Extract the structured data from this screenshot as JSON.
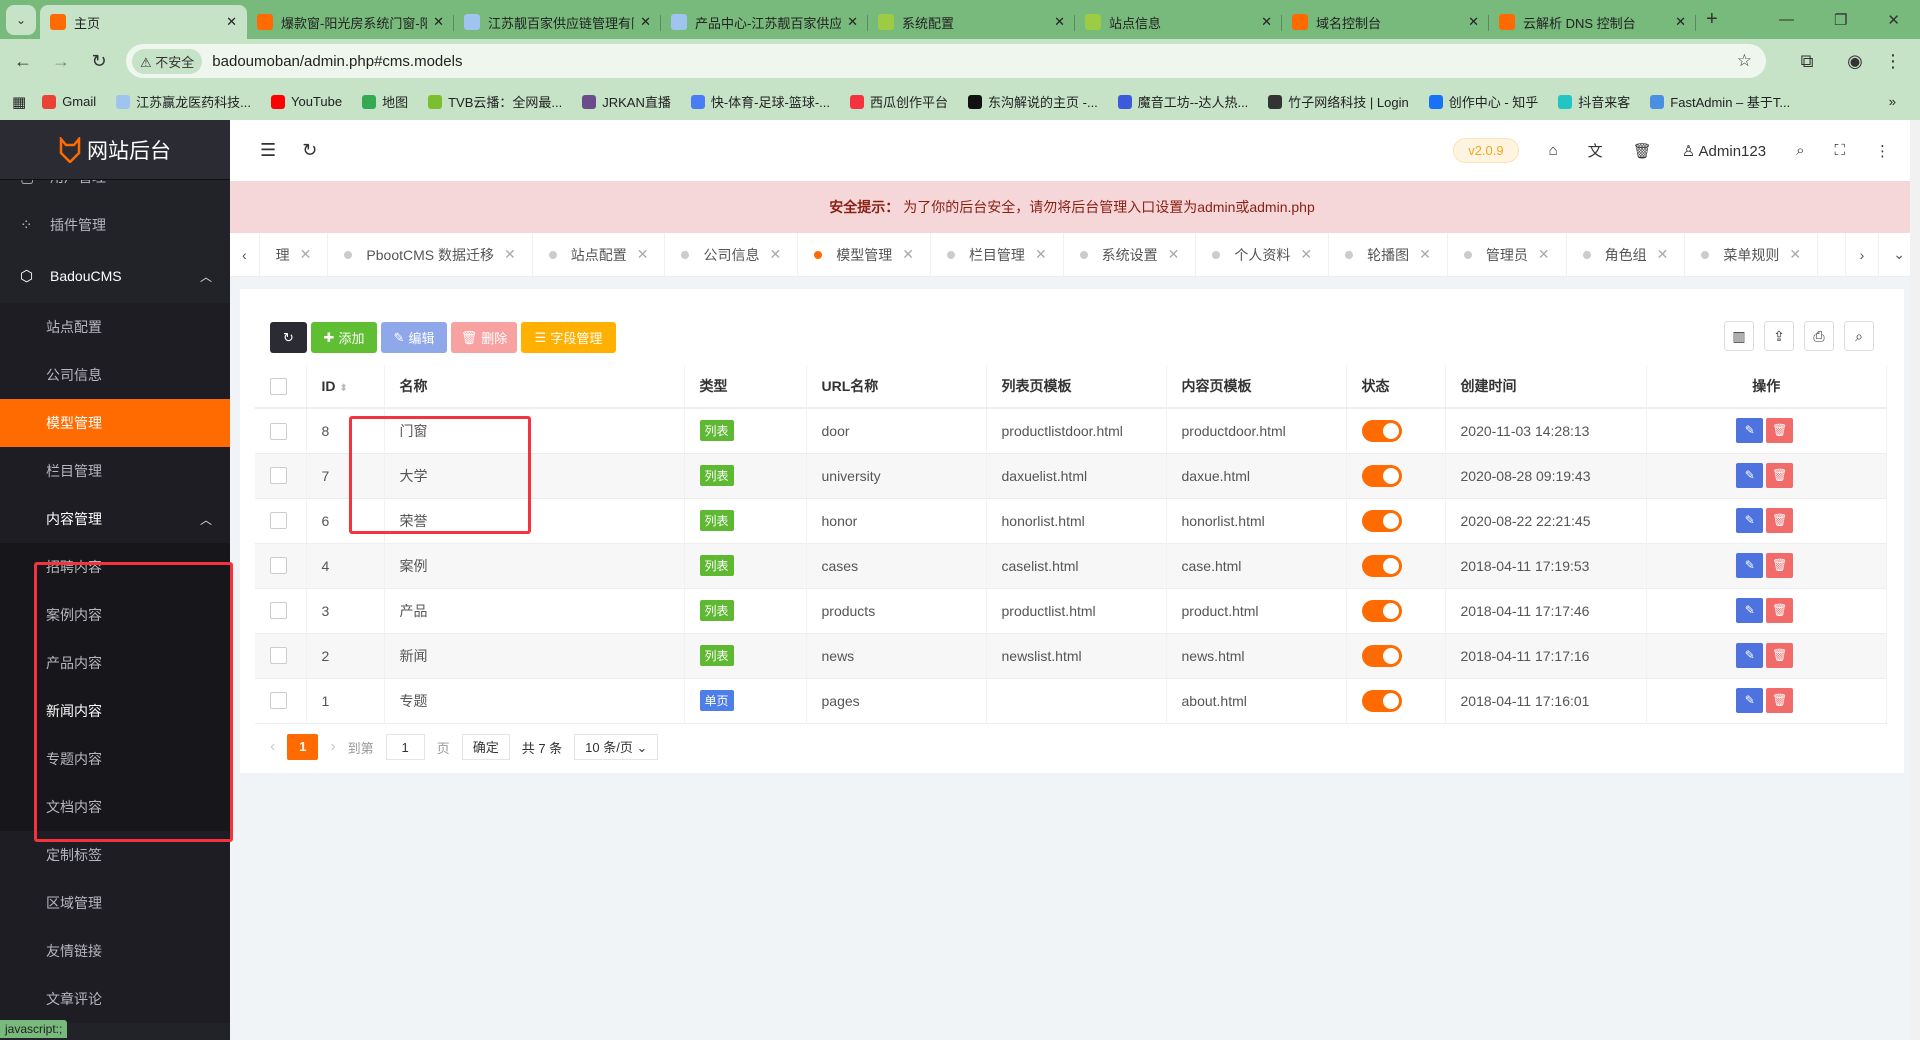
{
  "browser": {
    "tabs": [
      {
        "title": "主页",
        "active": true,
        "color": "#ff6b00"
      },
      {
        "title": "爆款窗-阳光房系统门窗-阳",
        "color": "#ff6b00"
      },
      {
        "title": "江苏靓百家供应链管理有限",
        "color": "#9ec4ef"
      },
      {
        "title": "产品中心-江苏靓百家供应",
        "color": "#9ec4ef"
      },
      {
        "title": "系统配置",
        "color": "#9ccc44"
      },
      {
        "title": "站点信息",
        "color": "#9ccc44"
      },
      {
        "title": "域名控制台",
        "color": "#ff6a00"
      },
      {
        "title": "云解析 DNS 控制台",
        "color": "#ff6a00"
      }
    ],
    "security_label": "不安全",
    "url": "badoumoban/admin.php#cms.models",
    "bookmarks": [
      {
        "label": "Gmail",
        "color": "#ea4335"
      },
      {
        "label": "江苏赢龙医药科技...",
        "color": "#9ec4ef"
      },
      {
        "label": "YouTube",
        "color": "#ff0000"
      },
      {
        "label": "地图",
        "color": "#34a853"
      },
      {
        "label": "TVB云播：全网最...",
        "color": "#7cbf2e"
      },
      {
        "label": "JRKAN直播",
        "color": "#6a4b8c"
      },
      {
        "label": "快-体育-足球-篮球-...",
        "color": "#4a7cf5"
      },
      {
        "label": "西瓜创作平台",
        "color": "#f5333f"
      },
      {
        "label": "东沟解说的主页 -...",
        "color": "#111111"
      },
      {
        "label": "魔音工坊--达人热...",
        "color": "#3b5bdb"
      },
      {
        "label": "竹子网络科技 | Login",
        "color": "#333333"
      },
      {
        "label": "创作中心 - 知乎",
        "color": "#1772f6"
      },
      {
        "label": "抖音来客",
        "color": "#23c4c4"
      },
      {
        "label": "FastAdmin – 基于T...",
        "color": "#4a90e2"
      }
    ],
    "status_text": "javascript:;"
  },
  "sidebar": {
    "logo": "网站后台",
    "items": [
      {
        "label": "用户管理",
        "type": "top",
        "icon": "user-icon"
      },
      {
        "label": "插件管理",
        "type": "top",
        "icon": "plugin-icon"
      },
      {
        "label": "BadouCMS",
        "type": "top-open",
        "icon": "cube-icon"
      },
      {
        "label": "站点配置",
        "type": "sub"
      },
      {
        "label": "公司信息",
        "type": "sub"
      },
      {
        "label": "模型管理",
        "type": "sub",
        "active": true
      },
      {
        "label": "栏目管理",
        "type": "sub"
      },
      {
        "label": "内容管理",
        "type": "sub-open"
      },
      {
        "label": "招聘内容",
        "type": "sub2"
      },
      {
        "label": "案例内容",
        "type": "sub2"
      },
      {
        "label": "产品内容",
        "type": "sub2"
      },
      {
        "label": "新闻内容",
        "type": "sub2",
        "highlight": true
      },
      {
        "label": "专题内容",
        "type": "sub2"
      },
      {
        "label": "文档内容",
        "type": "sub2"
      },
      {
        "label": "定制标签",
        "type": "sub"
      },
      {
        "label": "区域管理",
        "type": "sub"
      },
      {
        "label": "友情链接",
        "type": "sub"
      },
      {
        "label": "文章评论",
        "type": "sub"
      }
    ]
  },
  "header": {
    "version": "v2.0.9",
    "user": "Admin123"
  },
  "alert": {
    "title": "安全提示：",
    "text": "为了你的后台安全，请勿将后台管理入口设置为admin或admin.php"
  },
  "tabnav": [
    {
      "label": "理"
    },
    {
      "label": "PbootCMS 数据迁移"
    },
    {
      "label": "站点配置"
    },
    {
      "label": "公司信息"
    },
    {
      "label": "模型管理",
      "active": true
    },
    {
      "label": "栏目管理"
    },
    {
      "label": "系统设置"
    },
    {
      "label": "个人资料"
    },
    {
      "label": "轮播图"
    },
    {
      "label": "管理员"
    },
    {
      "label": "角色组"
    },
    {
      "label": "菜单规则"
    }
  ],
  "toolbar": {
    "add": "添加",
    "edit": "编辑",
    "delete": "删除",
    "fields": "字段管理"
  },
  "table": {
    "columns": [
      "ID",
      "名称",
      "类型",
      "URL名称",
      "列表页模板",
      "内容页模板",
      "状态",
      "创建时间",
      "操作"
    ],
    "rows": [
      {
        "id": "8",
        "name": "门窗",
        "type": "列表",
        "url": "door",
        "list_tpl": "productlistdoor.html",
        "content_tpl": "productdoor.html",
        "status": true,
        "created": "2020-11-03 14:28:13"
      },
      {
        "id": "7",
        "name": "大学",
        "type": "列表",
        "url": "university",
        "list_tpl": "daxuelist.html",
        "content_tpl": "daxue.html",
        "status": true,
        "created": "2020-08-28 09:19:43"
      },
      {
        "id": "6",
        "name": "荣誉",
        "type": "列表",
        "url": "honor",
        "list_tpl": "honorlist.html",
        "content_tpl": "honorlist.html",
        "status": true,
        "created": "2020-08-22 22:21:45"
      },
      {
        "id": "4",
        "name": "案例",
        "type": "列表",
        "url": "cases",
        "list_tpl": "caselist.html",
        "content_tpl": "case.html",
        "status": true,
        "created": "2018-04-11 17:19:53"
      },
      {
        "id": "3",
        "name": "产品",
        "type": "列表",
        "url": "products",
        "list_tpl": "productlist.html",
        "content_tpl": "product.html",
        "status": true,
        "created": "2018-04-11 17:17:46"
      },
      {
        "id": "2",
        "name": "新闻",
        "type": "列表",
        "url": "news",
        "list_tpl": "newslist.html",
        "content_tpl": "news.html",
        "status": true,
        "created": "2018-04-11 17:17:16"
      },
      {
        "id": "1",
        "name": "专题",
        "type": "单页",
        "url": "pages",
        "list_tpl": "",
        "content_tpl": "about.html",
        "status": true,
        "created": "2018-04-11 17:16:01"
      }
    ]
  },
  "pager": {
    "current": "1",
    "goto_label": "到第",
    "goto_value": "1",
    "page_label": "页",
    "confirm": "确定",
    "total": "共 7 条",
    "page_size": "10 条/页"
  },
  "colors": {
    "accent": "#ff6b00",
    "list_badge": "#5fb832",
    "page_badge": "#4e7ee8",
    "edit": "#4e73df",
    "delete": "#f26b6b"
  }
}
